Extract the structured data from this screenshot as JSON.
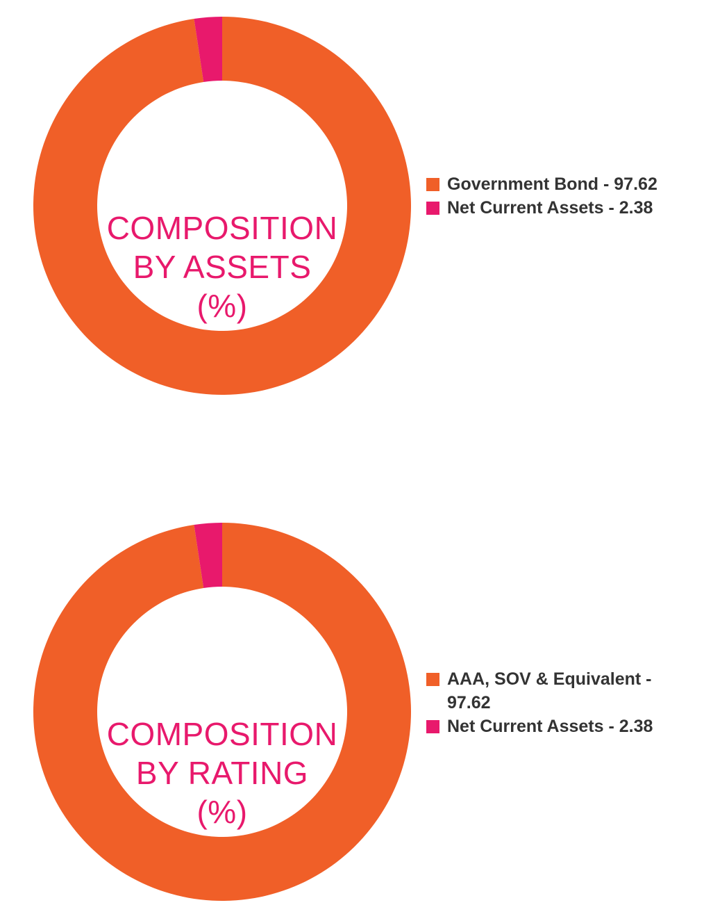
{
  "colors": {
    "primary": "#F05F28",
    "accent": "#E8196C",
    "legend_text": "#333333"
  },
  "chart_data": [
    {
      "type": "pie",
      "variant": "donut",
      "center_title_lines": [
        "COMPOSITION",
        "BY ASSETS",
        "(%)"
      ],
      "legend_placement": "right",
      "slices": [
        {
          "label": "Government Bond - 97.62",
          "name": "Government Bond",
          "value": 97.62,
          "color": "#F05F28"
        },
        {
          "label": "Net Current Assets - 2.38",
          "name": "Net Current Assets",
          "value": 2.38,
          "color": "#E8196C"
        }
      ]
    },
    {
      "type": "pie",
      "variant": "donut",
      "center_title_lines": [
        "COMPOSITION",
        "BY RATING",
        "(%)"
      ],
      "legend_placement": "right",
      "slices": [
        {
          "label_lines": [
            "AAA, SOV & Equivalent -",
            "97.62"
          ],
          "name": "AAA, SOV & Equivalent",
          "value": 97.62,
          "color": "#F05F28"
        },
        {
          "label": "Net Current Assets - 2.38",
          "name": "Net Current Assets",
          "value": 2.38,
          "color": "#E8196C"
        }
      ]
    }
  ]
}
